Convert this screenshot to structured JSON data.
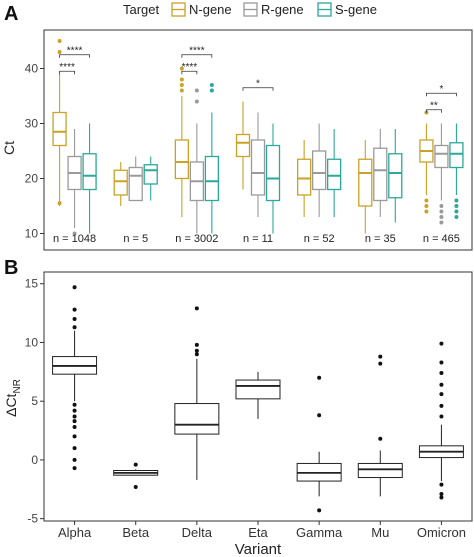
{
  "panel_a": {
    "letter": "A",
    "legend_title": "Target",
    "legend_entries": [
      {
        "name": "N-gene",
        "color": "#c9a227"
      },
      {
        "name": "R-gene",
        "color": "#9a9a9a"
      },
      {
        "name": "S-gene",
        "color": "#2aa89a"
      }
    ]
  },
  "panel_b": {
    "letter": "B"
  },
  "chart_data": [
    {
      "type": "box",
      "ylabel": "Ct",
      "ylim": [
        7,
        47
      ],
      "yticks": [
        10,
        20,
        30,
        40
      ],
      "grid": false,
      "legend_position": "top",
      "categories": [
        "Alpha",
        "Beta",
        "Delta",
        "Eta",
        "Gamma",
        "Mu",
        "Omicron"
      ],
      "sample_sizes": [
        "n = 1048",
        "n = 5",
        "n = 3002",
        "n = 11",
        "n = 52",
        "n = 35",
        "n = 465"
      ],
      "series": [
        {
          "name": "N-gene",
          "color": "#c9a227",
          "boxes": [
            {
              "whislo": 15,
              "q1": 26,
              "med": 28.5,
              "q3": 32,
              "whishi": 39,
              "outliers": [
                15.5,
                43,
                45
              ]
            },
            {
              "whislo": 15,
              "q1": 17,
              "med": 19.5,
              "q3": 21.5,
              "whishi": 23,
              "outliers": []
            },
            {
              "whislo": 13,
              "q1": 20,
              "med": 23,
              "q3": 27,
              "whishi": 35,
              "outliers": [
                36,
                37,
                38,
                40
              ]
            },
            {
              "whislo": 18,
              "q1": 24,
              "med": 26.5,
              "q3": 28,
              "whishi": 34,
              "outliers": []
            },
            {
              "whislo": 13,
              "q1": 17,
              "med": 20,
              "q3": 23.5,
              "whishi": 27,
              "outliers": []
            },
            {
              "whislo": 10,
              "q1": 15,
              "med": 21,
              "q3": 23.5,
              "whishi": 27,
              "outliers": []
            },
            {
              "whislo": 17,
              "q1": 23,
              "med": 25,
              "q3": 27,
              "whishi": 30,
              "outliers": [
                14,
                15,
                16,
                32
              ]
            }
          ]
        },
        {
          "name": "R-gene",
          "color": "#9a9a9a",
          "boxes": [
            {
              "whislo": 11,
              "q1": 18,
              "med": 21,
              "q3": 24,
              "whishi": 29,
              "outliers": [
                10
              ]
            },
            {
              "whislo": 16,
              "q1": 16,
              "med": 20.5,
              "q3": 22,
              "whishi": 24,
              "outliers": []
            },
            {
              "whislo": 10,
              "q1": 16,
              "med": 19.5,
              "q3": 23,
              "whishi": 30,
              "outliers": [
                34,
                36
              ]
            },
            {
              "whislo": 13,
              "q1": 17,
              "med": 21,
              "q3": 27,
              "whishi": 32,
              "outliers": []
            },
            {
              "whislo": 13,
              "q1": 18,
              "med": 21,
              "q3": 25,
              "whishi": 30,
              "outliers": []
            },
            {
              "whislo": 13,
              "q1": 16,
              "med": 21.5,
              "q3": 25.5,
              "whishi": 29,
              "outliers": []
            },
            {
              "whislo": 16,
              "q1": 22,
              "med": 24.5,
              "q3": 26,
              "whishi": 30,
              "outliers": [
                12,
                13,
                14,
                15
              ]
            }
          ]
        },
        {
          "name": "S-gene",
          "color": "#2aa89a",
          "boxes": [
            {
              "whislo": 10,
              "q1": 18,
              "med": 20.5,
              "q3": 24.5,
              "whishi": 30,
              "outliers": []
            },
            {
              "whislo": 16,
              "q1": 19,
              "med": 21.5,
              "q3": 22.5,
              "whishi": 24,
              "outliers": []
            },
            {
              "whislo": 10,
              "q1": 16,
              "med": 19.5,
              "q3": 24,
              "whishi": 32,
              "outliers": [
                36,
                37
              ]
            },
            {
              "whislo": 10,
              "q1": 16,
              "med": 20,
              "q3": 26,
              "whishi": 30,
              "outliers": []
            },
            {
              "whislo": 13,
              "q1": 18,
              "med": 20.5,
              "q3": 23.5,
              "whishi": 29,
              "outliers": []
            },
            {
              "whislo": 12,
              "q1": 16.5,
              "med": 21,
              "q3": 24.5,
              "whishi": 29,
              "outliers": []
            },
            {
              "whislo": 17,
              "q1": 22,
              "med": 24.5,
              "q3": 26.5,
              "whishi": 30,
              "outliers": [
                13,
                14,
                15,
                16
              ]
            }
          ]
        }
      ],
      "significance": [
        {
          "category": "Alpha",
          "from": "N-gene",
          "to": "S-gene",
          "y": 42.5,
          "label": "****"
        },
        {
          "category": "Alpha",
          "from": "N-gene",
          "to": "R-gene",
          "y": 39.5,
          "label": "****"
        },
        {
          "category": "Delta",
          "from": "N-gene",
          "to": "S-gene",
          "y": 42.5,
          "label": "****"
        },
        {
          "category": "Delta",
          "from": "N-gene",
          "to": "R-gene",
          "y": 39.5,
          "label": "****"
        },
        {
          "category": "Eta",
          "from": "N-gene",
          "to": "S-gene",
          "y": 36.5,
          "label": "*"
        },
        {
          "category": "Omicron",
          "from": "N-gene",
          "to": "S-gene",
          "y": 35.5,
          "label": "*"
        },
        {
          "category": "Omicron",
          "from": "N-gene",
          "to": "R-gene",
          "y": 32.5,
          "label": "**"
        }
      ]
    },
    {
      "type": "box",
      "xlabel": "Variant",
      "ylabel_main": "ΔCt",
      "ylabel_sub": "NR",
      "ylim": [
        -5.2,
        16
      ],
      "yticks": [
        -5,
        0,
        5,
        10,
        15
      ],
      "grid": false,
      "categories": [
        "Alpha",
        "Beta",
        "Delta",
        "Eta",
        "Gamma",
        "Mu",
        "Omicron"
      ],
      "boxes": [
        {
          "whislo": 5,
          "q1": 7.3,
          "med": 8,
          "q3": 8.8,
          "whishi": 11,
          "outliers": [
            14.7,
            12.8,
            12,
            11.3,
            4.7,
            4.2,
            3.7,
            3.3,
            2.8,
            2,
            1,
            0,
            -0.7
          ]
        },
        {
          "whislo": -1.3,
          "q1": -1.3,
          "med": -1.1,
          "q3": -0.9,
          "whishi": -0.8,
          "outliers": [
            -0.4,
            -2.3
          ]
        },
        {
          "whislo": -1.7,
          "q1": 2.2,
          "med": 3,
          "q3": 4.8,
          "whishi": 8.6,
          "outliers": [
            12.9,
            9.8,
            9.3,
            9
          ]
        },
        {
          "whislo": 3.5,
          "q1": 5.2,
          "med": 6.3,
          "q3": 6.8,
          "whishi": 7.5,
          "outliers": []
        },
        {
          "whislo": -3.1,
          "q1": -1.8,
          "med": -1.1,
          "q3": -0.3,
          "whishi": 0.7,
          "outliers": [
            7,
            3.8,
            -4.3
          ]
        },
        {
          "whislo": -3.1,
          "q1": -1.5,
          "med": -0.8,
          "q3": -0.3,
          "whishi": 0.8,
          "outliers": [
            8.8,
            8.2,
            1.8
          ]
        },
        {
          "whislo": -1.8,
          "q1": 0.2,
          "med": 0.7,
          "q3": 1.2,
          "whishi": 3,
          "outliers": [
            9.9,
            8.3,
            7.4,
            6.4,
            5.6,
            4.6,
            3.7,
            -2.1,
            -2.9,
            -3.2
          ]
        }
      ]
    }
  ]
}
